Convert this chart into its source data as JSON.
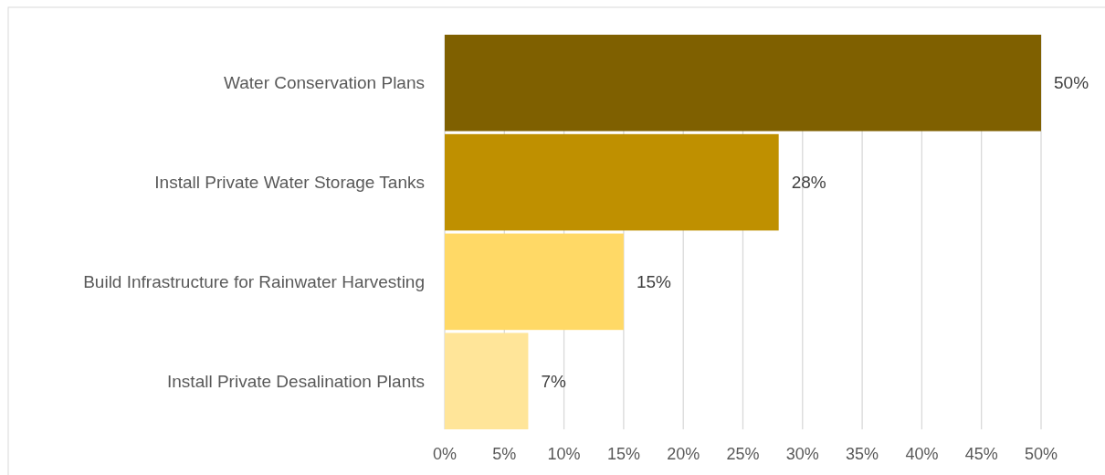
{
  "chart_data": {
    "type": "bar",
    "orientation": "horizontal",
    "categories": [
      "Water Conservation Plans",
      "Install Private Water Storage Tanks",
      "Build Infrastructure for Rainwater Harvesting",
      "Install Private Desalination Plants"
    ],
    "values": [
      50,
      28,
      15,
      7
    ],
    "colors": [
      "#7f6000",
      "#bf9000",
      "#ffd966",
      "#ffe599"
    ],
    "value_labels": [
      "50%",
      "28%",
      "15%",
      "7%"
    ],
    "xlim": [
      0,
      50
    ],
    "xticks": [
      {
        "value": 0,
        "label": "0%"
      },
      {
        "value": 5,
        "label": "5%"
      },
      {
        "value": 10,
        "label": "10%"
      },
      {
        "value": 15,
        "label": "15%"
      },
      {
        "value": 20,
        "label": "20%"
      },
      {
        "value": 25,
        "label": "25%"
      },
      {
        "value": 30,
        "label": "30%"
      },
      {
        "value": 35,
        "label": "35%"
      },
      {
        "value": 40,
        "label": "40%"
      },
      {
        "value": 45,
        "label": "45%"
      },
      {
        "value": 50,
        "label": "50%"
      }
    ],
    "grid": "x"
  }
}
